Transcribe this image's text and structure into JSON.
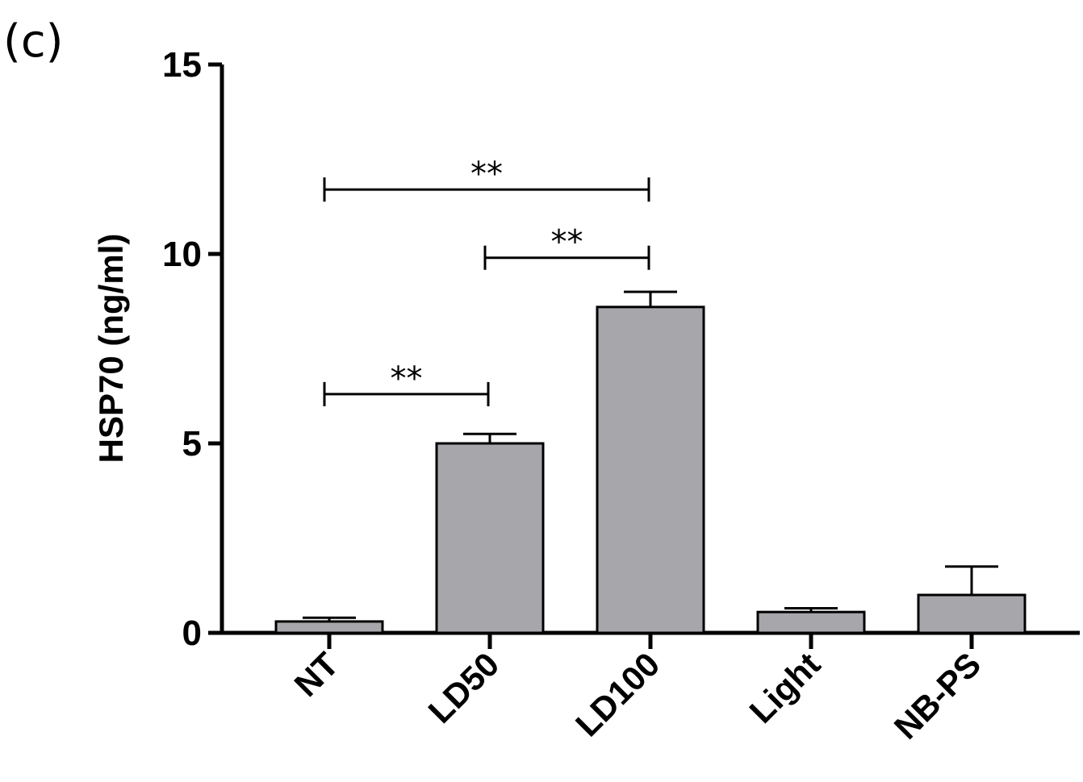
{
  "panel_label": "(c)",
  "chart_data": {
    "type": "bar",
    "title": "",
    "xlabel": "",
    "ylabel": "HSP70 (ng/ml)",
    "ylim": [
      0,
      15
    ],
    "yticks": [
      0,
      5,
      10,
      15
    ],
    "categories": [
      "NT",
      "LD50",
      "LD100",
      "Light",
      "NB-PS"
    ],
    "values": [
      0.3,
      5.0,
      8.6,
      0.55,
      1.0
    ],
    "errors": [
      0.1,
      0.25,
      0.4,
      0.1,
      0.75
    ],
    "bar_color": "#a7a6ab",
    "significance": [
      {
        "from": 0,
        "to": 1,
        "y": 6.3,
        "label": "**"
      },
      {
        "from": 1,
        "to": 2,
        "y": 9.9,
        "label": "**"
      },
      {
        "from": 0,
        "to": 2,
        "y": 11.7,
        "label": "**"
      }
    ]
  }
}
